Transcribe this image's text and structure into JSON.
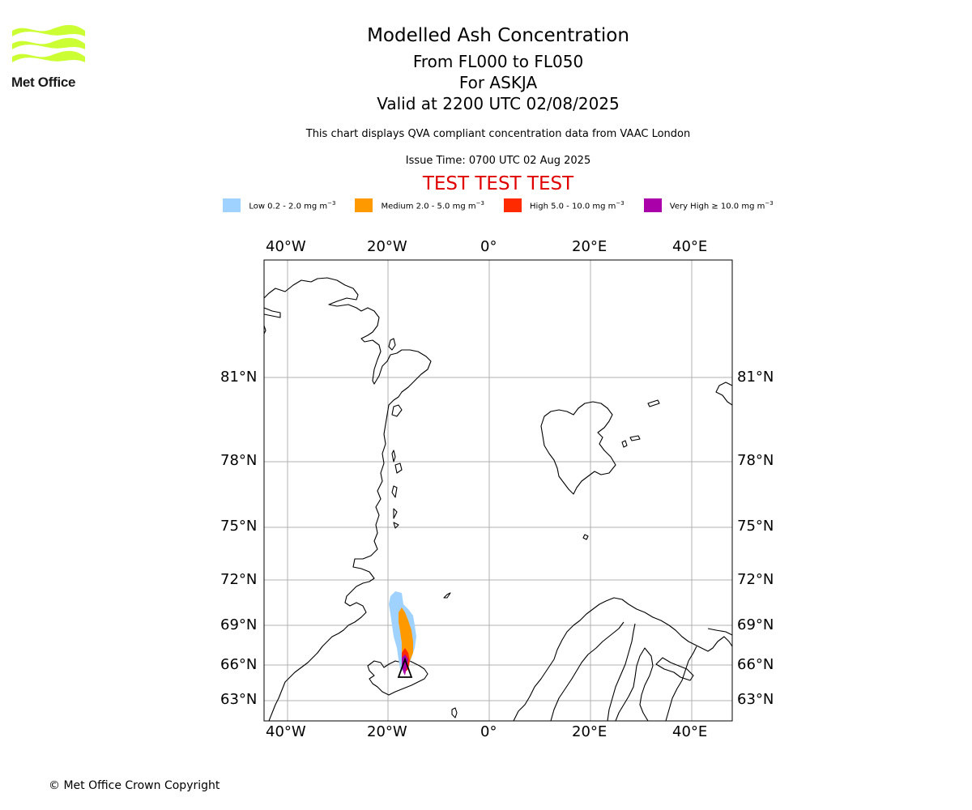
{
  "logo": {
    "text": "Met Office",
    "color": "#ccff33"
  },
  "title": {
    "line1": "Modelled Ash Concentration",
    "line2": "From FL000 to FL050",
    "line3": "For ASKJA",
    "line4": "Valid at 2200 UTC 02/08/2025"
  },
  "subtitle": "This chart displays QVA compliant concentration data from VAAC London",
  "issue_time": "Issue Time: 0700 UTC 02 Aug 2025",
  "test_message": "TEST TEST TEST",
  "legend": [
    {
      "label": "Low 0.2 - 2.0 mg m",
      "exp": "−3",
      "color": "#a0d2ff"
    },
    {
      "label": "Medium 2.0 - 5.0 mg m",
      "exp": "−3",
      "color": "#ff9900"
    },
    {
      "label": "High 5.0 - 10.0 mg m",
      "exp": "−3",
      "color": "#ff2a00"
    },
    {
      "label": "Very High  ≥  10.0 mg m",
      "exp": "−3",
      "color": "#aa00aa"
    }
  ],
  "map": {
    "lon_ticks": [
      "40°W",
      "20°W",
      "0°",
      "20°E",
      "40°E"
    ],
    "lat_ticks": [
      "81°N",
      "78°N",
      "75°N",
      "72°N",
      "69°N",
      "66°N",
      "63°N"
    ],
    "volcano": "ASKJA",
    "volcano_marker": "triangle-icon"
  },
  "copyright": "© Met Office Crown Copyright"
}
